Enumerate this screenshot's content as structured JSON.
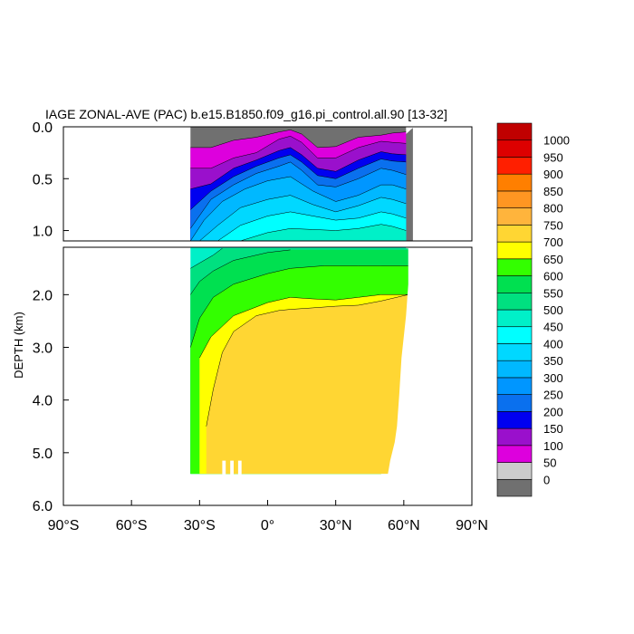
{
  "chart_data": {
    "type": "filled-contour",
    "title": "IAGE ZONAL-AVE (PAC) b.e15.B1850.f09_g16.pi_control.all.90 [13-32]",
    "ylabel": "DEPTH (km)",
    "xlabel": "",
    "xlim": [
      -90,
      90
    ],
    "x_ticks": [
      {
        "value": -90,
        "label": "90°S"
      },
      {
        "value": -60,
        "label": "60°S"
      },
      {
        "value": -30,
        "label": "30°S"
      },
      {
        "value": 0,
        "label": "0°"
      },
      {
        "value": 30,
        "label": "30°N"
      },
      {
        "value": 60,
        "label": "60°N"
      },
      {
        "value": 90,
        "label": "90°N"
      }
    ],
    "upper_panel": {
      "ylim": [
        0,
        1.1
      ],
      "y_ticks": [
        {
          "value": 0.0,
          "label": "0.0"
        },
        {
          "value": 0.5,
          "label": "0.5"
        },
        {
          "value": 1.0,
          "label": "1.0"
        }
      ]
    },
    "lower_panel": {
      "ylim": [
        1.1,
        6.0
      ],
      "y_ticks": [
        {
          "value": 2.0,
          "label": "2.0"
        },
        {
          "value": 3.0,
          "label": "3.0"
        },
        {
          "value": 4.0,
          "label": "4.0"
        },
        {
          "value": 5.0,
          "label": "5.0"
        },
        {
          "value": 6.0,
          "label": "6.0"
        }
      ]
    },
    "ocean_lat_range": [
      -34,
      63
    ],
    "colorbar": {
      "levels": [
        "0",
        "50",
        "100",
        "150",
        "200",
        "250",
        "300",
        "350",
        "400",
        "450",
        "500",
        "550",
        "600",
        "650",
        "700",
        "750",
        "800",
        "850",
        "900",
        "950",
        "1000"
      ],
      "colors": [
        "#707070",
        "#cccccc",
        "#dd00dd",
        "#9a10cc",
        "#0000f0",
        "#0a70ee",
        "#0096ff",
        "#00b8ff",
        "#00d8ff",
        "#00ffff",
        "#00f0c8",
        "#00e080",
        "#00e050",
        "#33ff00",
        "#ffff00",
        "#ffd633",
        "#ffb43c",
        "#ff9622",
        "#ff7f00",
        "#ff1f00",
        "#dd0000",
        "#c00000"
      ]
    },
    "series": [
      {
        "level": 50,
        "upper": [
          [
            -34,
            0.2
          ],
          [
            -25,
            0.2
          ],
          [
            -15,
            0.13
          ],
          [
            -5,
            0.1
          ],
          [
            5,
            0.05
          ],
          [
            10,
            0.03
          ],
          [
            15,
            0.07
          ],
          [
            22,
            0.2
          ],
          [
            30,
            0.19
          ],
          [
            40,
            0.1
          ],
          [
            50,
            0.08
          ],
          [
            55,
            0.06
          ],
          [
            61,
            0.05
          ]
        ],
        "lower": null
      },
      {
        "level": 100,
        "upper": [
          [
            -34,
            0.4
          ],
          [
            -25,
            0.4
          ],
          [
            -15,
            0.3
          ],
          [
            -5,
            0.25
          ],
          [
            5,
            0.12
          ],
          [
            10,
            0.09
          ],
          [
            15,
            0.15
          ],
          [
            22,
            0.3
          ],
          [
            30,
            0.3
          ],
          [
            40,
            0.2
          ],
          [
            50,
            0.14
          ],
          [
            55,
            0.15
          ],
          [
            61,
            0.16
          ]
        ],
        "lower": null
      },
      {
        "level": 150,
        "upper": [
          [
            -34,
            0.6
          ],
          [
            -25,
            0.55
          ],
          [
            -15,
            0.4
          ],
          [
            -5,
            0.32
          ],
          [
            5,
            0.23
          ],
          [
            10,
            0.2
          ],
          [
            15,
            0.27
          ],
          [
            22,
            0.4
          ],
          [
            30,
            0.43
          ],
          [
            40,
            0.32
          ],
          [
            50,
            0.24
          ],
          [
            55,
            0.26
          ],
          [
            61,
            0.27
          ]
        ],
        "lower": null
      },
      {
        "level": 200,
        "upper": [
          [
            -34,
            0.8
          ],
          [
            -25,
            0.62
          ],
          [
            -15,
            0.48
          ],
          [
            -5,
            0.38
          ],
          [
            5,
            0.3
          ],
          [
            10,
            0.27
          ],
          [
            15,
            0.34
          ],
          [
            22,
            0.47
          ],
          [
            30,
            0.5
          ],
          [
            40,
            0.4
          ],
          [
            50,
            0.31
          ],
          [
            55,
            0.33
          ],
          [
            61,
            0.34
          ]
        ],
        "lower": null
      },
      {
        "level": 250,
        "upper": [
          [
            -34,
            0.98
          ],
          [
            -25,
            0.7
          ],
          [
            -15,
            0.56
          ],
          [
            -5,
            0.45
          ],
          [
            5,
            0.38
          ],
          [
            10,
            0.34
          ],
          [
            15,
            0.42
          ],
          [
            22,
            0.56
          ],
          [
            30,
            0.58
          ],
          [
            40,
            0.5
          ],
          [
            50,
            0.4
          ],
          [
            55,
            0.42
          ],
          [
            61,
            0.46
          ]
        ],
        "lower": null
      },
      {
        "level": 300,
        "upper": [
          [
            -34,
            1.1
          ],
          [
            -28,
            0.9
          ],
          [
            -20,
            0.72
          ],
          [
            -10,
            0.6
          ],
          [
            0,
            0.52
          ],
          [
            10,
            0.48
          ],
          [
            20,
            0.62
          ],
          [
            30,
            0.72
          ],
          [
            40,
            0.66
          ],
          [
            50,
            0.56
          ],
          [
            55,
            0.56
          ],
          [
            61,
            0.6
          ]
        ],
        "lower": null
      },
      {
        "level": 350,
        "upper": [
          [
            -30,
            1.1
          ],
          [
            -22,
            0.95
          ],
          [
            -12,
            0.78
          ],
          [
            0,
            0.7
          ],
          [
            10,
            0.66
          ],
          [
            20,
            0.75
          ],
          [
            30,
            0.82
          ],
          [
            40,
            0.76
          ],
          [
            50,
            0.68
          ],
          [
            55,
            0.7
          ],
          [
            61,
            0.74
          ]
        ],
        "lower": null
      },
      {
        "level": 400,
        "upper": [
          [
            -22,
            1.1
          ],
          [
            -12,
            0.95
          ],
          [
            0,
            0.86
          ],
          [
            10,
            0.82
          ],
          [
            20,
            0.86
          ],
          [
            30,
            0.9
          ],
          [
            40,
            0.88
          ],
          [
            50,
            0.82
          ],
          [
            55,
            0.84
          ],
          [
            61,
            0.88
          ]
        ],
        "lower": null
      },
      {
        "level": 450,
        "upper": [
          [
            -12,
            1.1
          ],
          [
            0,
            1.02
          ],
          [
            10,
            0.98
          ],
          [
            20,
            0.99
          ],
          [
            30,
            1.0
          ],
          [
            40,
            0.98
          ],
          [
            50,
            0.94
          ],
          [
            55,
            0.96
          ],
          [
            61,
            1.0
          ]
        ],
        "lower": [
          [
            -34,
            1.1
          ],
          [
            -30,
            1.1
          ]
        ]
      },
      {
        "level": 500,
        "upper": null,
        "lower": [
          [
            -34,
            1.5
          ],
          [
            -30,
            1.4
          ],
          [
            -24,
            1.25
          ],
          [
            -20,
            1.12
          ]
        ]
      },
      {
        "level": 550,
        "upper": null,
        "lower": [
          [
            -34,
            2.0
          ],
          [
            -30,
            1.75
          ],
          [
            -24,
            1.55
          ],
          [
            -15,
            1.35
          ],
          [
            0,
            1.2
          ],
          [
            10,
            1.15
          ]
        ]
      },
      {
        "level": 600,
        "upper": null,
        "lower": [
          [
            -34,
            3.0
          ],
          [
            -30,
            2.45
          ],
          [
            -24,
            2.05
          ],
          [
            -15,
            1.8
          ],
          [
            0,
            1.6
          ],
          [
            10,
            1.5
          ],
          [
            25,
            1.45
          ],
          [
            40,
            1.45
          ],
          [
            50,
            1.45
          ],
          [
            62,
            1.45
          ]
        ]
      },
      {
        "level": 650,
        "upper": null,
        "lower": [
          [
            -30,
            3.2
          ],
          [
            -25,
            2.8
          ],
          [
            -15,
            2.4
          ],
          [
            0,
            2.15
          ],
          [
            10,
            2.05
          ],
          [
            20,
            2.08
          ],
          [
            30,
            2.1
          ],
          [
            40,
            2.05
          ],
          [
            50,
            2.0
          ],
          [
            62,
            2.0
          ]
        ]
      },
      {
        "level": 700,
        "upper": null,
        "lower": [
          [
            -27,
            4.5
          ],
          [
            -24,
            3.8
          ],
          [
            -20,
            3.1
          ],
          [
            -15,
            2.7
          ],
          [
            -5,
            2.4
          ],
          [
            5,
            2.3
          ],
          [
            10,
            2.28
          ],
          [
            20,
            2.25
          ],
          [
            30,
            2.22
          ],
          [
            40,
            2.2
          ],
          [
            50,
            2.12
          ],
          [
            62,
            2.0
          ]
        ]
      }
    ]
  }
}
